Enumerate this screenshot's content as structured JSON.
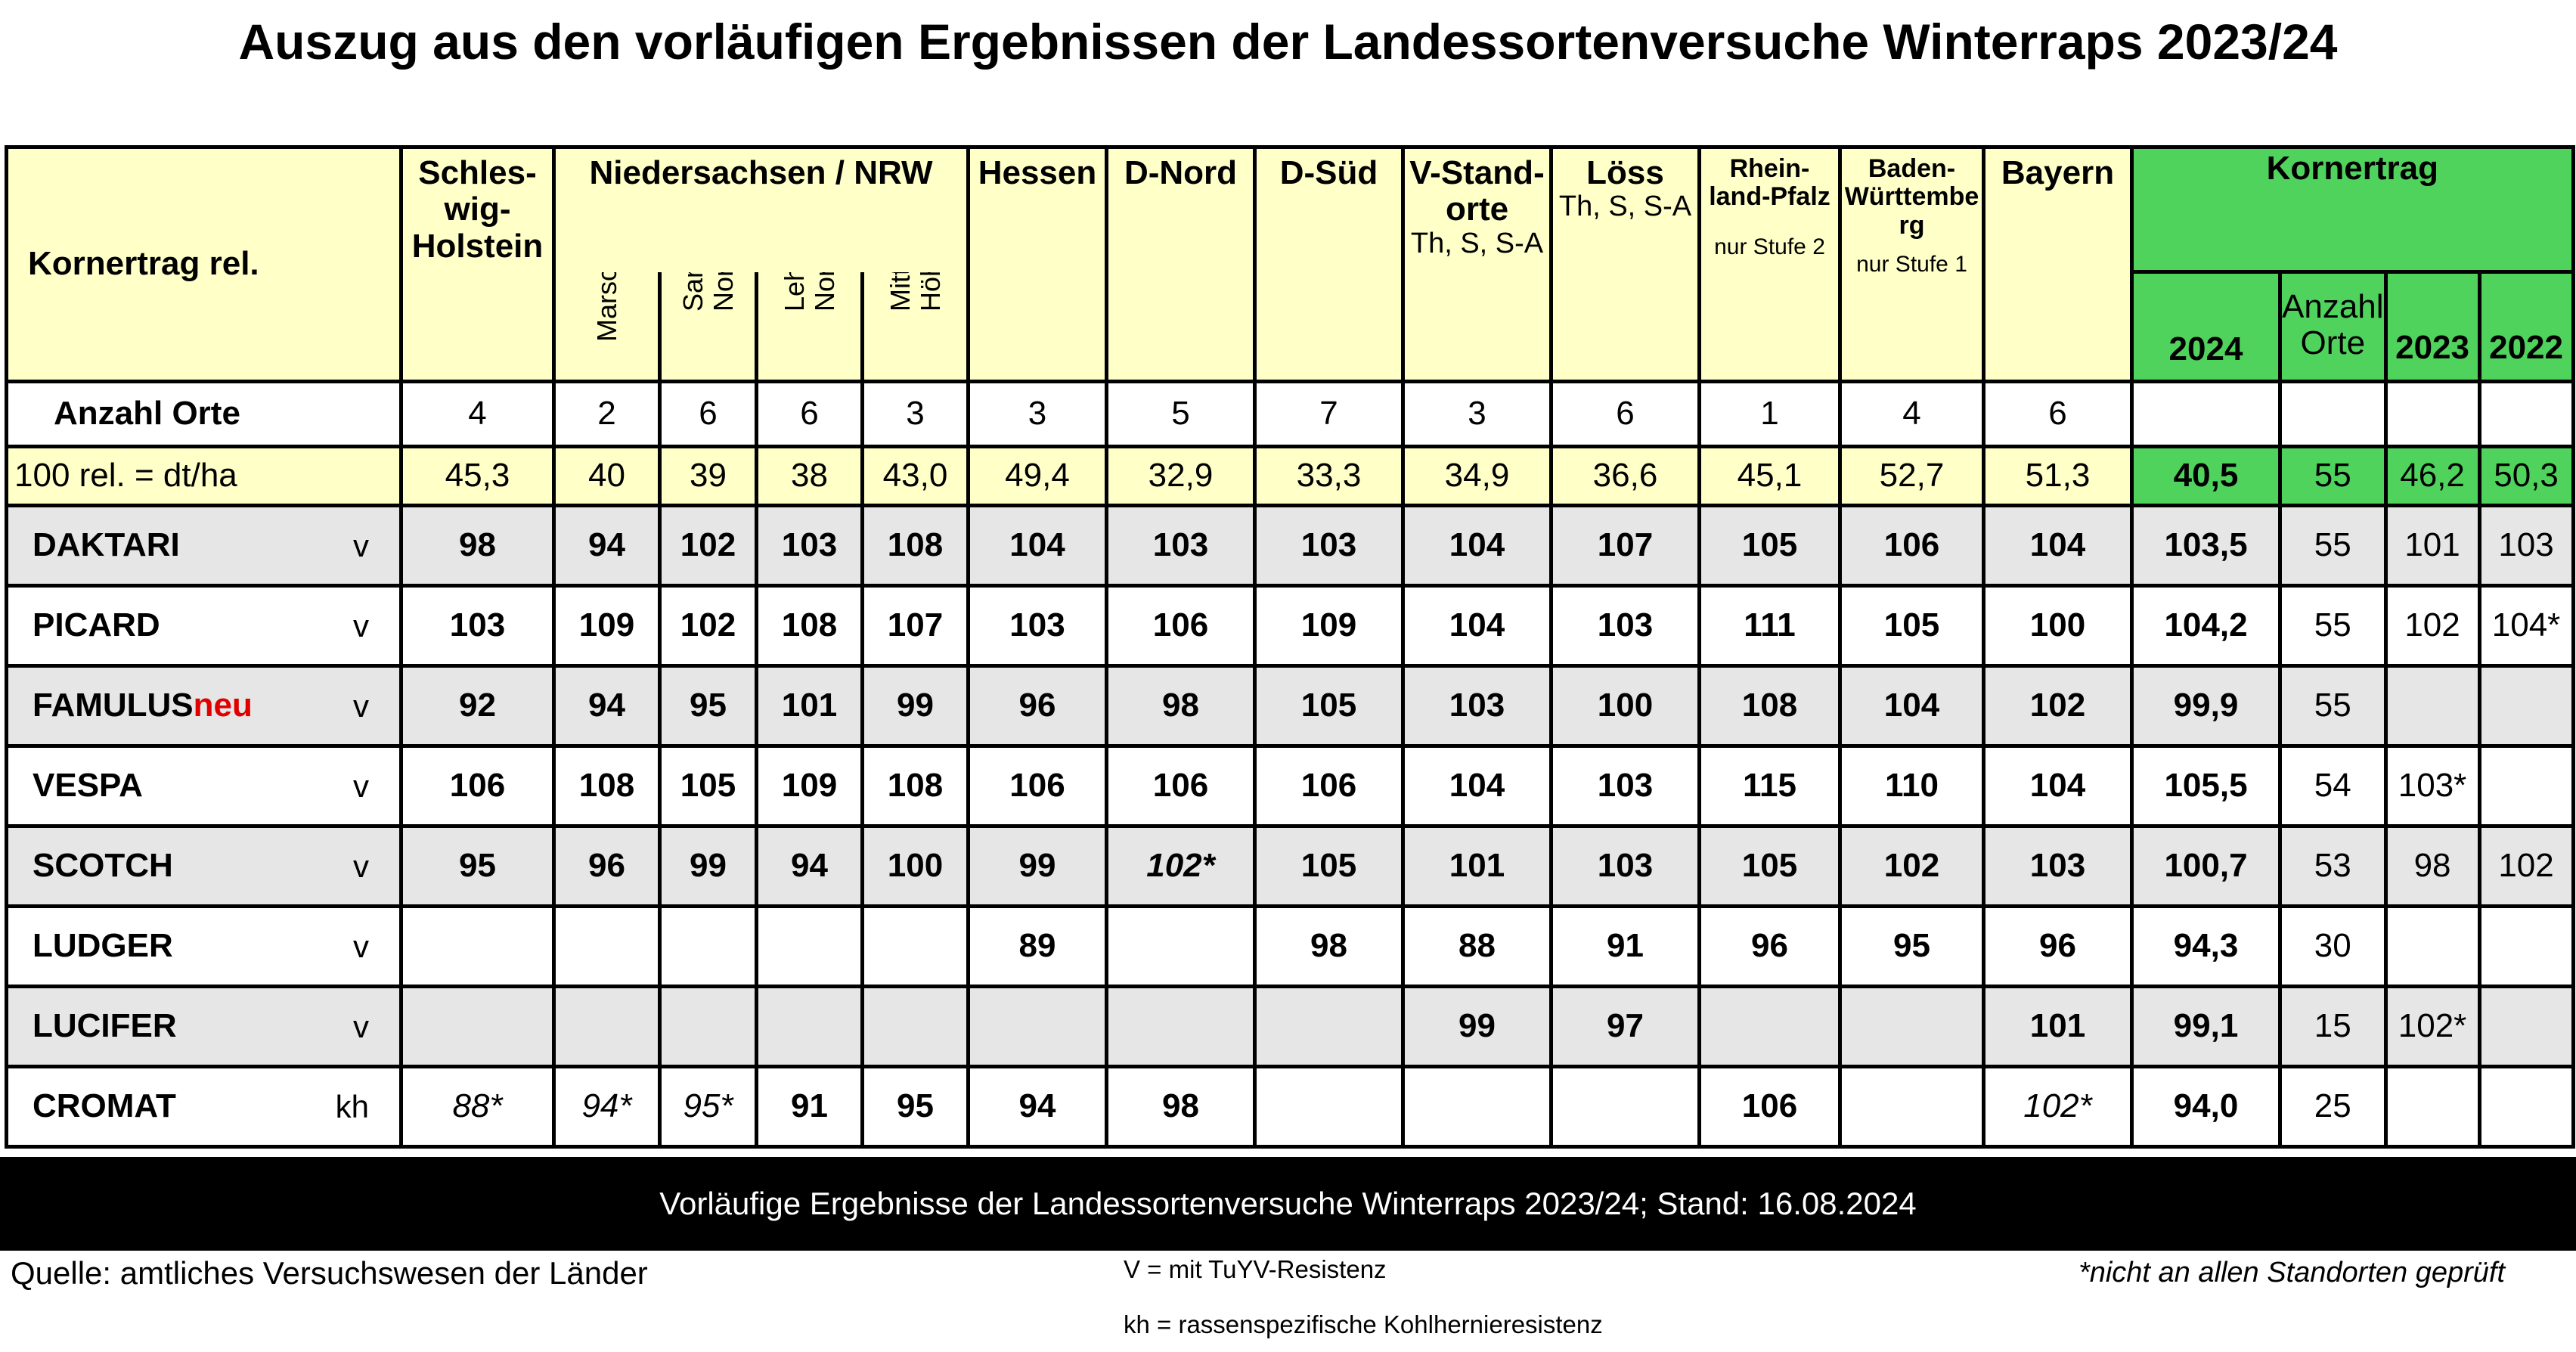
{
  "title": "Auszug aus den vorläufigen Ergebnissen der Landessortenversuche Winterraps 2023/24",
  "colors": {
    "header_yellow": "#ffffc8",
    "kornertrag_green": "#4fd35c",
    "row_grey": "#e6e6e6",
    "neu_red": "#e00000",
    "footer_black": "#000000"
  },
  "table": {
    "corner_label": "Kornertrag rel.",
    "regions": {
      "schleswig_holstein": "Schles-wig-Holstein",
      "niedersachsen_nrw": "Niedersachsen / NRW",
      "marsch": "Marsch",
      "sandboeden_line1": "Sandböden",
      "sandboeden_line2": "Nordwest",
      "lehmboeden_line1": "Lehmböden",
      "lehmboeden_line2": "Nordwest",
      "mittel_line1": "Mittel- und",
      "mittel_line2": "Höhenlagen",
      "hessen": "Hessen",
      "d_nord": "D-Nord",
      "d_sued": "D-Süd",
      "v_standorte": "V-Stand-orte",
      "v_standorte_sub": "Th, S, S-A",
      "loess": "Löss",
      "loess_sub": "Th, S, S-A",
      "rheinland_pfalz": "Rhein-land-Pfalz",
      "rheinland_pfalz_note": "nur Stufe 2",
      "baden_wuerttemberg": "Baden-Württembe rg",
      "baden_wuerttemberg_note": "nur Stufe 1",
      "bayern": "Bayern"
    },
    "kornertrag": {
      "header": "Kornertrag",
      "year_2024": "2024",
      "anzahl_orte": "Anzahl Orte",
      "year_2023": "2023",
      "year_2022": "2022"
    },
    "anzahl_orte_row": {
      "label": "Anzahl Orte",
      "values": [
        "4",
        "2",
        "6",
        "6",
        "3",
        "3",
        "5",
        "7",
        "3",
        "6",
        "1",
        "4",
        "6"
      ]
    },
    "reference_row": {
      "label": "100 rel. = dt/ha",
      "values": [
        "45,3",
        "40",
        "39",
        "38",
        "43,0",
        "49,4",
        "32,9",
        "33,3",
        "34,9",
        "36,6",
        "45,1",
        "52,7",
        "51,3"
      ],
      "k2024": "40,5",
      "orte": "55",
      "k2023": "46,2",
      "k2022": "50,3"
    },
    "varieties": [
      {
        "name": "DAKTARI",
        "suffix": "",
        "type": "v",
        "values": [
          "98",
          "94",
          "102",
          "103",
          "108",
          "104",
          "103",
          "103",
          "104",
          "107",
          "105",
          "106",
          "104"
        ],
        "k2024": "103,5",
        "orte": "55",
        "k2023": "101",
        "k2022": "103"
      },
      {
        "name": "PICARD",
        "suffix": "",
        "type": "v",
        "values": [
          "103",
          "109",
          "102",
          "108",
          "107",
          "103",
          "106",
          "109",
          "104",
          "103",
          "111",
          "105",
          "100"
        ],
        "k2024": "104,2",
        "orte": "55",
        "k2023": "102",
        "k2022": "104*"
      },
      {
        "name": "FAMULUS",
        "suffix": "neu",
        "type": "v",
        "values": [
          "92",
          "94",
          "95",
          "101",
          "99",
          "96",
          "98",
          "105",
          "103",
          "100",
          "108",
          "104",
          "102"
        ],
        "k2024": "99,9",
        "orte": "55",
        "k2023": "",
        "k2022": ""
      },
      {
        "name": "VESPA",
        "suffix": "",
        "type": "v",
        "values": [
          "106",
          "108",
          "105",
          "109",
          "108",
          "106",
          "106",
          "106",
          "104",
          "103",
          "115",
          "110",
          "104"
        ],
        "k2024": "105,5",
        "orte": "54",
        "k2023": "103*",
        "k2022": ""
      },
      {
        "name": "SCOTCH",
        "suffix": "",
        "type": "v",
        "values": [
          "95",
          "96",
          "99",
          "94",
          "100",
          "99",
          "102*",
          "105",
          "101",
          "103",
          "105",
          "102",
          "103"
        ],
        "k2024": "100,7",
        "orte": "53",
        "k2023": "98",
        "k2022": "102"
      },
      {
        "name": "LUDGER",
        "suffix": "",
        "type": "v",
        "values": [
          "",
          "",
          "",
          "",
          "",
          "89",
          "",
          "98",
          "88",
          "91",
          "96",
          "95",
          "96"
        ],
        "k2024": "94,3",
        "orte": "30",
        "k2023": "",
        "k2022": ""
      },
      {
        "name": "LUCIFER",
        "suffix": "",
        "type": "v",
        "values": [
          "",
          "",
          "",
          "",
          "",
          "",
          "",
          "",
          "99",
          "97",
          "",
          "",
          "101"
        ],
        "k2024": "99,1",
        "orte": "15",
        "k2023": "102*",
        "k2022": ""
      },
      {
        "name": "CROMAT",
        "suffix": "",
        "type": "kh",
        "values": [
          "88*",
          "94*",
          "95*",
          "91",
          "95",
          "94",
          "98",
          "",
          "",
          "",
          "106",
          "",
          "102*"
        ],
        "k2024": "94,0",
        "orte": "25",
        "k2023": "",
        "k2022": ""
      }
    ]
  },
  "footer": {
    "bar_text": "Vorläufige Ergebnisse der Landessortenversuche Winterraps 2023/24; Stand: 16.08.2024",
    "source": "Quelle: amtliches Versuchswesen der Länder",
    "legend_v": "V = mit TuYV-Resistenz",
    "legend_kh": "kh = rassenspezifische Kohlhernieresistenz",
    "footnote": "*nicht an allen Standorten geprüft"
  },
  "chart_data": {
    "type": "table",
    "title": "Auszug aus den vorläufigen Ergebnissen der Landessortenversuche Winterraps 2023/24",
    "columns": [
      "Schles-wig-Holstein",
      "Marsch",
      "Sandböden Nordwest",
      "Lehmböden Nordwest",
      "Mittel- und Höhenlagen",
      "Hessen",
      "D-Nord",
      "D-Süd",
      "V-Stand-orte",
      "Löss",
      "Rhein-land-Pfalz",
      "Baden-Württembe rg",
      "Bayern",
      "2024",
      "Anzahl Orte",
      "2023",
      "2022"
    ],
    "rows": [
      {
        "label": "Anzahl Orte",
        "values": [
          "4",
          "2",
          "6",
          "6",
          "3",
          "3",
          "5",
          "7",
          "3",
          "6",
          "1",
          "4",
          "6",
          "",
          "",
          "",
          ""
        ]
      },
      {
        "label": "100 rel. = dt/ha",
        "values": [
          "45,3",
          "40",
          "39",
          "38",
          "43,0",
          "49,4",
          "32,9",
          "33,3",
          "34,9",
          "36,6",
          "45,1",
          "52,7",
          "51,3",
          "40,5",
          "55",
          "46,2",
          "50,3"
        ]
      },
      {
        "label": "DAKTARI",
        "values": [
          "98",
          "94",
          "102",
          "103",
          "108",
          "104",
          "103",
          "103",
          "104",
          "107",
          "105",
          "106",
          "104",
          "103,5",
          "55",
          "101",
          "103"
        ]
      },
      {
        "label": "PICARD",
        "values": [
          "103",
          "109",
          "102",
          "108",
          "107",
          "103",
          "106",
          "109",
          "104",
          "103",
          "111",
          "105",
          "100",
          "104,2",
          "55",
          "102",
          "104*"
        ]
      },
      {
        "label": "FAMULUSneu",
        "values": [
          "92",
          "94",
          "95",
          "101",
          "99",
          "96",
          "98",
          "105",
          "103",
          "100",
          "108",
          "104",
          "102",
          "99,9",
          "55",
          "",
          ""
        ]
      },
      {
        "label": "VESPA",
        "values": [
          "106",
          "108",
          "105",
          "109",
          "108",
          "106",
          "106",
          "106",
          "104",
          "103",
          "115",
          "110",
          "104",
          "105,5",
          "54",
          "103*",
          ""
        ]
      },
      {
        "label": "SCOTCH",
        "values": [
          "95",
          "96",
          "99",
          "94",
          "100",
          "99",
          "102*",
          "105",
          "101",
          "103",
          "105",
          "102",
          "103",
          "100,7",
          "53",
          "98",
          "102"
        ]
      },
      {
        "label": "LUDGER",
        "values": [
          "",
          "",
          "",
          "",
          "",
          "89",
          "",
          "98",
          "88",
          "91",
          "96",
          "95",
          "96",
          "94,3",
          "30",
          "",
          ""
        ]
      },
      {
        "label": "LUCIFER",
        "values": [
          "",
          "",
          "",
          "",
          "",
          "",
          "",
          "",
          "99",
          "97",
          "",
          "",
          "101",
          "99,1",
          "15",
          "102*",
          ""
        ]
      },
      {
        "label": "CROMAT",
        "values": [
          "88*",
          "94*",
          "95*",
          "91",
          "95",
          "94",
          "98",
          "",
          "",
          "",
          "106",
          "",
          "102*",
          "94,0",
          "25",
          "",
          ""
        ]
      }
    ]
  }
}
